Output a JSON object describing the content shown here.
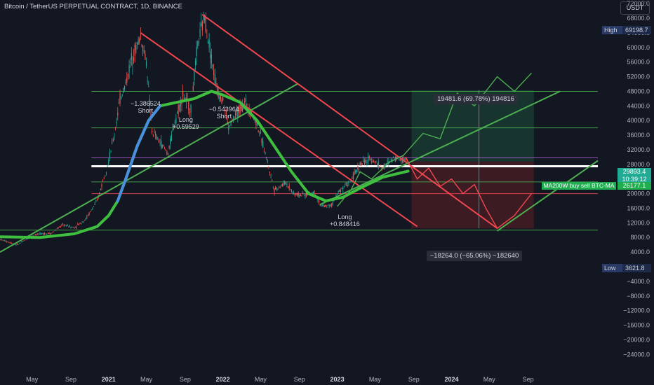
{
  "header": {
    "title": "Bitcoin / TetherUS PERPETUAL CONTRACT, 1D, BINANCE",
    "currency": "USDT"
  },
  "colors": {
    "background": "#131722",
    "up_candle": "#26a69a",
    "down_candle": "#ef5350",
    "ma200w": "#3fbf3f",
    "ma_band": "#4a8fe0",
    "trend_red": "#f2464e",
    "trend_green": "#4caf50",
    "white_line": "#ffffff",
    "purple_line": "#b05fd6"
  },
  "markers": {
    "high": {
      "label": "High",
      "value": "69198.7"
    },
    "low": {
      "label": "Low",
      "value": "3621.8"
    },
    "current": {
      "price": "29893.4",
      "countdown": "10:39:12"
    },
    "ma": {
      "label": "MA200W buy sell BTC-MA",
      "value": "26177.1"
    }
  },
  "annotations": {
    "up_box": "19481.6 (69.78%) 194816",
    "down_box": "−18264.0 (−65.06%) −182640",
    "trades": [
      {
        "line1": "−1.386524",
        "line2": "Short"
      },
      {
        "line1": "Long",
        "line2": "+0.59529"
      },
      {
        "line1": "−0.543964",
        "line2": "Short"
      },
      {
        "line1": "Long",
        "line2": "+0.848416"
      }
    ]
  },
  "chart_data": {
    "type": "line",
    "title": "Bitcoin / TetherUS PERPETUAL CONTRACT, 1D, BINANCE",
    "ylim": [
      -24000,
      72000
    ],
    "y_ticks": [
      72000,
      68000,
      64000,
      60000,
      56000,
      52000,
      48000,
      44000,
      40000,
      36000,
      32000,
      28000,
      24000,
      20000,
      16000,
      12000,
      8000,
      4000,
      0,
      -4000,
      -8000,
      -12000,
      -16000,
      -20000,
      -24000
    ],
    "y_tick_labels": [
      "72000.0",
      "68000.0",
      "64000.0",
      "60000.0",
      "56000.0",
      "52000.0",
      "48000.0",
      "44000.0",
      "40000.0",
      "36000.0",
      "32000.0",
      "28000.0",
      "24000.0",
      "20000.0",
      "16000.0",
      "12000.0",
      "8000.0",
      "4000.0",
      "0.0",
      "−4000.0",
      "−8000.0",
      "−12000.0",
      "−16000.0",
      "−20000.0",
      "−24000.0"
    ],
    "x_labels": [
      "May",
      "Sep",
      "2021",
      "May",
      "Sep",
      "2022",
      "May",
      "Sep",
      "2023",
      "May",
      "Sep",
      "2024",
      "May",
      "Sep"
    ],
    "x_label_months": [
      2020.33,
      2020.67,
      2021.0,
      2021.33,
      2021.67,
      2022.0,
      2022.33,
      2022.67,
      2023.0,
      2023.33,
      2023.67,
      2024.0,
      2024.33,
      2024.67
    ],
    "xlim": [
      2020.05,
      2025.28
    ],
    "price_path": [
      [
        2020.05,
        7500
      ],
      [
        2020.2,
        6000
      ],
      [
        2020.35,
        8800
      ],
      [
        2020.5,
        9200
      ],
      [
        2020.6,
        11500
      ],
      [
        2020.7,
        10700
      ],
      [
        2020.8,
        13000
      ],
      [
        2020.9,
        18000
      ],
      [
        2021.0,
        29000
      ],
      [
        2021.05,
        36000
      ],
      [
        2021.1,
        46000
      ],
      [
        2021.15,
        50000
      ],
      [
        2021.2,
        57000
      ],
      [
        2021.28,
        63000
      ],
      [
        2021.33,
        56000
      ],
      [
        2021.38,
        37000
      ],
      [
        2021.45,
        34000
      ],
      [
        2021.52,
        31000
      ],
      [
        2021.58,
        40000
      ],
      [
        2021.65,
        47000
      ],
      [
        2021.72,
        43000
      ],
      [
        2021.78,
        61000
      ],
      [
        2021.84,
        68500
      ],
      [
        2021.9,
        57000
      ],
      [
        2021.95,
        48000
      ],
      [
        2022.0,
        46000
      ],
      [
        2022.05,
        38000
      ],
      [
        2022.12,
        42000
      ],
      [
        2022.2,
        45000
      ],
      [
        2022.3,
        39000
      ],
      [
        2022.38,
        30000
      ],
      [
        2022.45,
        21000
      ],
      [
        2022.55,
        23000
      ],
      [
        2022.62,
        20000
      ],
      [
        2022.7,
        19500
      ],
      [
        2022.8,
        20500
      ],
      [
        2022.86,
        16500
      ],
      [
        2022.95,
        16800
      ],
      [
        2023.02,
        21000
      ],
      [
        2023.12,
        23500
      ],
      [
        2023.2,
        28000
      ],
      [
        2023.3,
        29500
      ],
      [
        2023.4,
        27000
      ],
      [
        2023.5,
        30000
      ],
      [
        2023.58,
        29300
      ],
      [
        2023.62,
        29893
      ]
    ],
    "series": [
      {
        "name": "MA200W buy sell BTC-MA",
        "values": [
          [
            2020.05,
            8200
          ],
          [
            2020.4,
            8000
          ],
          [
            2020.7,
            9000
          ],
          [
            2020.9,
            11000
          ],
          [
            2021.0,
            14000
          ],
          [
            2021.08,
            18000
          ],
          [
            2021.15,
            24000
          ],
          [
            2021.25,
            33000
          ],
          [
            2021.35,
            40000
          ],
          [
            2021.45,
            44000
          ],
          [
            2021.6,
            45000
          ],
          [
            2021.75,
            46000
          ],
          [
            2021.9,
            48000
          ],
          [
            2022.0,
            47000
          ],
          [
            2022.15,
            45000
          ],
          [
            2022.3,
            40000
          ],
          [
            2022.45,
            33000
          ],
          [
            2022.6,
            26000
          ],
          [
            2022.75,
            20000
          ],
          [
            2022.9,
            18000
          ],
          [
            2023.05,
            19000
          ],
          [
            2023.2,
            21500
          ],
          [
            2023.4,
            24500
          ],
          [
            2023.62,
            26177
          ]
        ]
      }
    ],
    "levels": [
      {
        "price": 48000,
        "color": "#4caf50"
      },
      {
        "price": 38000,
        "color": "#4caf50"
      },
      {
        "price": 29800,
        "color": "#b05fd6"
      },
      {
        "price": 27500,
        "color": "#ffffff"
      },
      {
        "price": 23200,
        "color": "#4caf50"
      },
      {
        "price": 20000,
        "color": "#f2464e"
      },
      {
        "price": 10000,
        "color": "#4caf50"
      }
    ],
    "trendlines": [
      {
        "color": "#f2464e",
        "points": [
          [
            2021.28,
            64000
          ],
          [
            2023.7,
            11000
          ]
        ]
      },
      {
        "color": "#f2464e",
        "points": [
          [
            2021.82,
            69000
          ],
          [
            2024.4,
            10500
          ]
        ]
      },
      {
        "color": "#4caf50",
        "points": [
          [
            2020.05,
            4000
          ],
          [
            2022.65,
            50000
          ]
        ]
      },
      {
        "color": "#4caf50",
        "points": [
          [
            2022.85,
            17000
          ],
          [
            2024.95,
            48000
          ]
        ]
      },
      {
        "color": "#4caf50",
        "points": [
          [
            2024.4,
            9800
          ],
          [
            2025.28,
            29000
          ]
        ]
      }
    ],
    "projection_path": [
      [
        2023.0,
        16500
      ],
      [
        2023.12,
        21000
      ],
      [
        2023.2,
        26000
      ],
      [
        2023.3,
        24000
      ],
      [
        2023.45,
        28500
      ],
      [
        2023.58,
        30500
      ],
      [
        2023.75,
        36500
      ],
      [
        2023.9,
        35000
      ],
      [
        2024.05,
        47500
      ],
      [
        2024.2,
        44000
      ],
      [
        2024.4,
        52000
      ],
      [
        2024.55,
        48000
      ],
      [
        2024.7,
        53000
      ]
    ],
    "projection_path_down": [
      [
        2023.6,
        30000
      ],
      [
        2023.7,
        24000
      ],
      [
        2023.8,
        27000
      ],
      [
        2023.9,
        22000
      ],
      [
        2024.0,
        24000
      ],
      [
        2024.1,
        20000
      ],
      [
        2024.2,
        22500
      ],
      [
        2024.3,
        16000
      ],
      [
        2024.4,
        10500
      ],
      [
        2024.55,
        14000
      ],
      [
        2024.7,
        20000
      ]
    ],
    "position_box": {
      "x_start": 2023.65,
      "x_end": 2024.72,
      "entry": 28800,
      "target": 48300,
      "stop": 10500
    }
  }
}
